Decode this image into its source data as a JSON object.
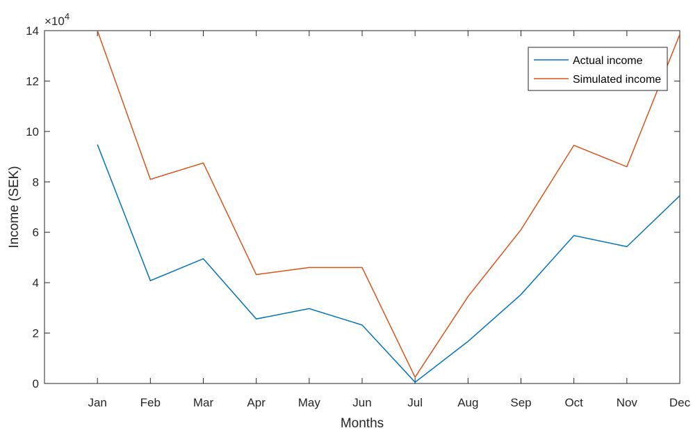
{
  "chart_data": {
    "type": "line",
    "categories": [
      "Jan",
      "Feb",
      "Mar",
      "Apr",
      "May",
      "Jun",
      "Jul",
      "Aug",
      "Sep",
      "Oct",
      "Nov",
      "Dec"
    ],
    "x_padding_left_categories": 1,
    "series": [
      {
        "name": "Actual income",
        "color": "#0072BD",
        "values": [
          94800,
          40800,
          49500,
          25600,
          29700,
          23200,
          500,
          16700,
          35300,
          58700,
          54300,
          74500
        ]
      },
      {
        "name": "Simulated income",
        "color": "#D95319",
        "values": [
          140000,
          81000,
          87500,
          43200,
          46000,
          46000,
          2500,
          34500,
          61000,
          94500,
          86000,
          138500
        ]
      }
    ],
    "xlabel": "Months",
    "ylabel": "Income (SEK)",
    "ylim": [
      0,
      140000
    ],
    "yticks": [
      0,
      2,
      4,
      6,
      8,
      10,
      12,
      14
    ],
    "y_exponent_label": "×10",
    "y_exponent": "4",
    "y_scale_factor": 10000,
    "grid": false,
    "legend_position": "top-right",
    "axes_color": "#262626"
  }
}
